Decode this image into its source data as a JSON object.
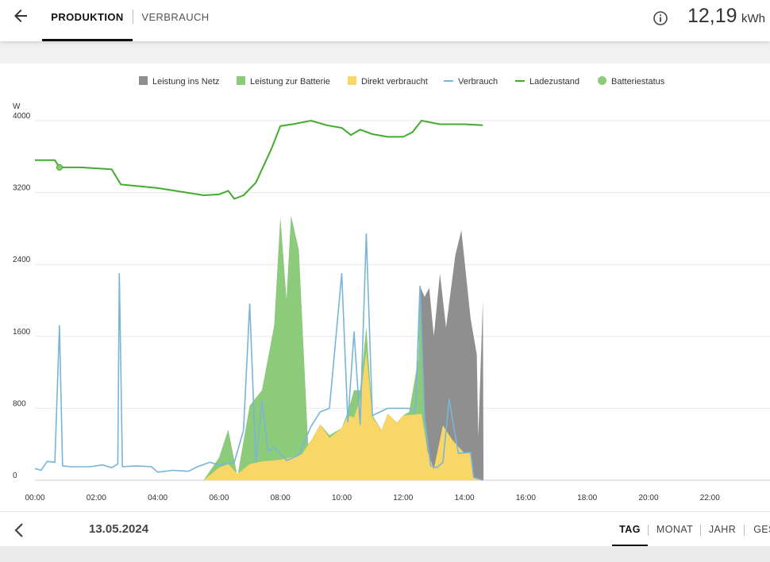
{
  "header": {
    "tabs": [
      {
        "label": "PRODUKTION",
        "active": true
      },
      {
        "label": "VERBRAUCH",
        "active": false
      }
    ],
    "total_value": "12,19",
    "total_unit": "kWh"
  },
  "legend": [
    {
      "label": "Leistung ins Netz",
      "color": "#8f8f8f",
      "kind": "area"
    },
    {
      "label": "Leistung zur Batterie",
      "color": "#8ccb7a",
      "kind": "area"
    },
    {
      "label": "Direkt verbraucht",
      "color": "#f8d668",
      "kind": "area"
    },
    {
      "label": "Verbrauch",
      "color": "#79b5d8",
      "kind": "line"
    },
    {
      "label": "Ladezustand",
      "color": "#41ad2e",
      "kind": "line"
    },
    {
      "label": "Batteriestatus",
      "color": "#8ccb7a",
      "kind": "point"
    }
  ],
  "chart_data": {
    "type": "area",
    "ylabel": "W",
    "ylim": [
      0,
      4000
    ],
    "y_ticks": [
      "0",
      "800",
      "1600",
      "2400",
      "3200",
      "4000"
    ],
    "x_ticks": [
      "00:00",
      "02:00",
      "04:00",
      "06:00",
      "08:00",
      "10:00",
      "12:00",
      "14:00",
      "16:00",
      "18:00",
      "20:00",
      "22:00"
    ],
    "x_range_hours": [
      0,
      24
    ],
    "grid": true,
    "legend_position": "top",
    "series": [
      {
        "name": "Direkt verbraucht",
        "color": "#f8d668",
        "points": [
          [
            5.5,
            0
          ],
          [
            6.0,
            140
          ],
          [
            6.3,
            180
          ],
          [
            6.6,
            70
          ],
          [
            7.0,
            180
          ],
          [
            7.4,
            210
          ],
          [
            7.8,
            220
          ],
          [
            8.2,
            240
          ],
          [
            8.7,
            290
          ],
          [
            9.0,
            440
          ],
          [
            9.3,
            620
          ],
          [
            9.6,
            470
          ],
          [
            10.0,
            580
          ],
          [
            10.2,
            720
          ],
          [
            10.4,
            700
          ],
          [
            10.6,
            900
          ],
          [
            10.8,
            1430
          ],
          [
            11.0,
            700
          ],
          [
            11.3,
            560
          ],
          [
            11.5,
            740
          ],
          [
            11.8,
            640
          ],
          [
            12.0,
            720
          ],
          [
            12.4,
            730
          ],
          [
            12.6,
            740
          ],
          [
            12.8,
            320
          ],
          [
            13.0,
            120
          ],
          [
            13.3,
            610
          ],
          [
            13.6,
            450
          ],
          [
            14.0,
            300
          ],
          [
            14.2,
            310
          ],
          [
            14.3,
            30
          ],
          [
            14.6,
            0
          ]
        ]
      },
      {
        "name": "Leistung zur Batterie",
        "color": "#8ccb7a",
        "points": [
          [
            5.5,
            0
          ],
          [
            6.0,
            250
          ],
          [
            6.3,
            560
          ],
          [
            6.6,
            40
          ],
          [
            7.0,
            830
          ],
          [
            7.4,
            1000
          ],
          [
            7.8,
            1720
          ],
          [
            8.0,
            2920
          ],
          [
            8.2,
            2000
          ],
          [
            8.35,
            2940
          ],
          [
            8.6,
            2560
          ],
          [
            8.9,
            400
          ],
          [
            9.0,
            440
          ],
          [
            9.3,
            620
          ],
          [
            9.6,
            500
          ],
          [
            10.0,
            580
          ],
          [
            10.2,
            760
          ],
          [
            10.4,
            1000
          ],
          [
            10.6,
            1000
          ],
          [
            10.8,
            1700
          ],
          [
            11.0,
            720
          ],
          [
            11.3,
            560
          ],
          [
            11.5,
            740
          ],
          [
            11.8,
            640
          ],
          [
            12.0,
            720
          ],
          [
            12.2,
            760
          ],
          [
            12.5,
            1350
          ],
          [
            12.55,
            2160
          ],
          [
            12.7,
            680
          ],
          [
            12.8,
            320
          ],
          [
            13.0,
            120
          ],
          [
            13.3,
            610
          ],
          [
            13.6,
            450
          ],
          [
            14.0,
            300
          ],
          [
            14.2,
            310
          ],
          [
            14.3,
            30
          ],
          [
            14.6,
            0
          ]
        ]
      },
      {
        "name": "Leistung ins Netz",
        "color": "#8f8f8f",
        "points": [
          [
            5.5,
            0
          ],
          [
            6.0,
            250
          ],
          [
            6.3,
            560
          ],
          [
            6.6,
            40
          ],
          [
            7.0,
            830
          ],
          [
            7.4,
            1000
          ],
          [
            7.8,
            1720
          ],
          [
            8.0,
            2920
          ],
          [
            8.2,
            2000
          ],
          [
            8.35,
            2940
          ],
          [
            8.6,
            2560
          ],
          [
            8.9,
            400
          ],
          [
            9.0,
            440
          ],
          [
            9.3,
            620
          ],
          [
            9.6,
            500
          ],
          [
            10.0,
            580
          ],
          [
            10.2,
            760
          ],
          [
            10.4,
            1000
          ],
          [
            10.6,
            1000
          ],
          [
            10.8,
            1700
          ],
          [
            11.0,
            720
          ],
          [
            11.3,
            560
          ],
          [
            11.5,
            740
          ],
          [
            11.8,
            640
          ],
          [
            12.0,
            720
          ],
          [
            12.2,
            760
          ],
          [
            12.5,
            1350
          ],
          [
            12.55,
            2160
          ],
          [
            12.7,
            2040
          ],
          [
            12.85,
            2140
          ],
          [
            13.0,
            1600
          ],
          [
            13.2,
            2300
          ],
          [
            13.4,
            1700
          ],
          [
            13.7,
            2500
          ],
          [
            13.9,
            2780
          ],
          [
            14.2,
            1800
          ],
          [
            14.4,
            1400
          ],
          [
            14.45,
            480
          ],
          [
            14.6,
            2000
          ],
          [
            14.62,
            0
          ]
        ]
      },
      {
        "name": "Verbrauch",
        "color": "#79b5d8",
        "points": [
          [
            0,
            130
          ],
          [
            0.2,
            110
          ],
          [
            0.4,
            210
          ],
          [
            0.65,
            200
          ],
          [
            0.8,
            1720
          ],
          [
            0.9,
            160
          ],
          [
            1.2,
            150
          ],
          [
            1.8,
            150
          ],
          [
            2.2,
            170
          ],
          [
            2.5,
            140
          ],
          [
            2.7,
            180
          ],
          [
            2.75,
            2300
          ],
          [
            2.85,
            150
          ],
          [
            3.3,
            160
          ],
          [
            3.8,
            150
          ],
          [
            4.0,
            90
          ],
          [
            4.5,
            110
          ],
          [
            5.0,
            100
          ],
          [
            5.3,
            150
          ],
          [
            5.7,
            200
          ],
          [
            6.0,
            170
          ],
          [
            6.5,
            200
          ],
          [
            6.8,
            560
          ],
          [
            7.0,
            1960
          ],
          [
            7.2,
            200
          ],
          [
            7.4,
            880
          ],
          [
            7.6,
            320
          ],
          [
            7.8,
            370
          ],
          [
            8.2,
            220
          ],
          [
            8.6,
            280
          ],
          [
            9.0,
            600
          ],
          [
            9.3,
            760
          ],
          [
            9.6,
            800
          ],
          [
            10.0,
            2300
          ],
          [
            10.2,
            650
          ],
          [
            10.4,
            1650
          ],
          [
            10.6,
            620
          ],
          [
            10.8,
            2740
          ],
          [
            11.0,
            720
          ],
          [
            11.5,
            800
          ],
          [
            12.0,
            800
          ],
          [
            12.2,
            800
          ],
          [
            12.4,
            760
          ],
          [
            12.55,
            2160
          ],
          [
            12.7,
            680
          ],
          [
            12.9,
            160
          ],
          [
            13.1,
            140
          ],
          [
            13.3,
            200
          ],
          [
            13.5,
            900
          ],
          [
            13.8,
            300
          ],
          [
            14.2,
            310
          ],
          [
            14.3,
            30
          ],
          [
            14.6,
            0
          ]
        ]
      },
      {
        "name": "Ladezustand",
        "color": "#41ad2e",
        "points": [
          [
            0,
            3560
          ],
          [
            0.65,
            3560
          ],
          [
            0.8,
            3480
          ],
          [
            1.5,
            3480
          ],
          [
            2.5,
            3460
          ],
          [
            2.8,
            3290
          ],
          [
            4.0,
            3250
          ],
          [
            5.5,
            3170
          ],
          [
            6.0,
            3180
          ],
          [
            6.3,
            3220
          ],
          [
            6.5,
            3130
          ],
          [
            6.8,
            3170
          ],
          [
            7.2,
            3310
          ],
          [
            7.7,
            3680
          ],
          [
            8.0,
            3940
          ],
          [
            8.4,
            3960
          ],
          [
            9.0,
            4000
          ],
          [
            9.5,
            3950
          ],
          [
            10.0,
            3920
          ],
          [
            10.3,
            3840
          ],
          [
            10.6,
            3900
          ],
          [
            11.0,
            3850
          ],
          [
            11.5,
            3820
          ],
          [
            12.0,
            3820
          ],
          [
            12.3,
            3870
          ],
          [
            12.6,
            4000
          ],
          [
            13.2,
            3960
          ],
          [
            14.0,
            3960
          ],
          [
            14.6,
            3950
          ]
        ]
      }
    ],
    "battery_status_point": [
      0.8,
      3480
    ]
  },
  "footer": {
    "date": "13.05.2024",
    "periods": [
      {
        "label": "TAG",
        "active": true
      },
      {
        "label": "MONAT",
        "active": false
      },
      {
        "label": "JAHR",
        "active": false
      },
      {
        "label": "GES",
        "active": false
      }
    ]
  }
}
